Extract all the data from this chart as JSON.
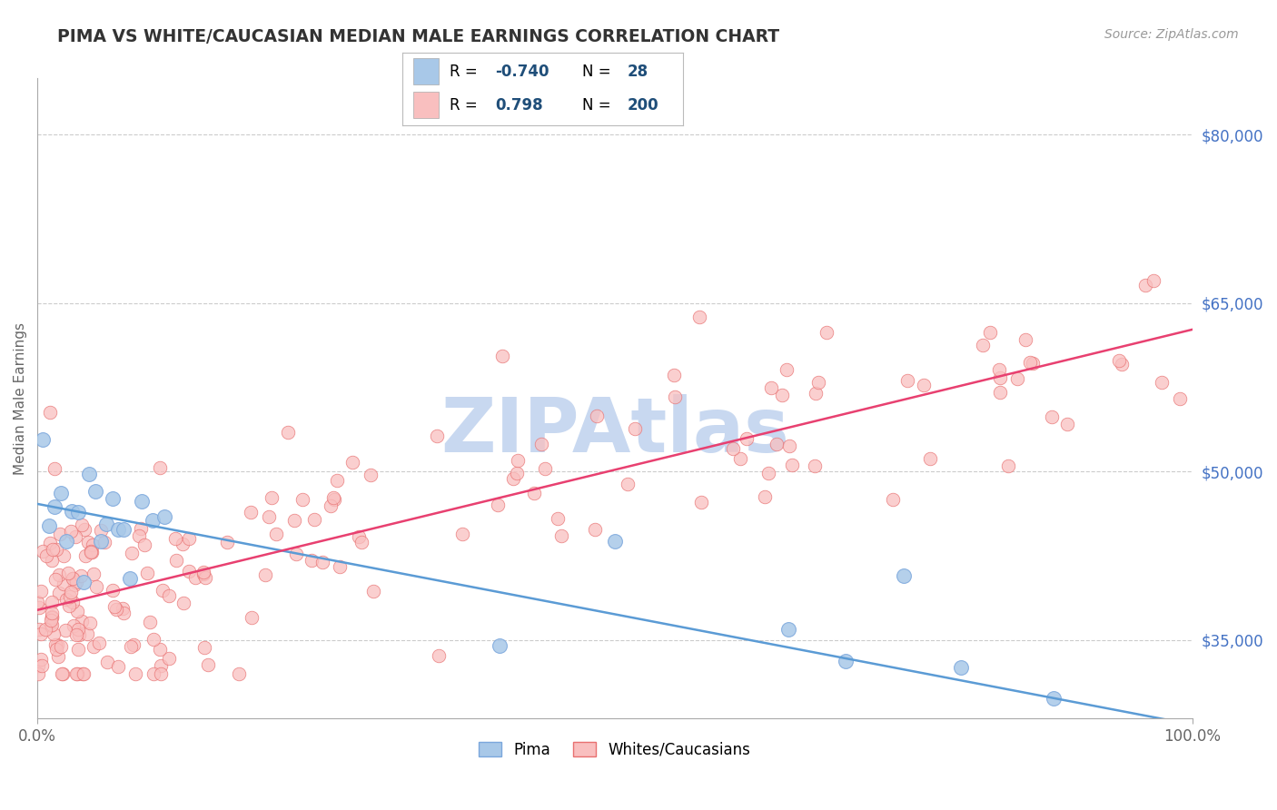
{
  "title": "PIMA VS WHITE/CAUCASIAN MEDIAN MALE EARNINGS CORRELATION CHART",
  "source": "Source: ZipAtlas.com",
  "ylabel": "Median Male Earnings",
  "xlim": [
    0,
    100
  ],
  "ylim": [
    28000,
    85000
  ],
  "yticks": [
    35000,
    50000,
    65000,
    80000
  ],
  "ytick_labels": [
    "$35,000",
    "$50,000",
    "$65,000",
    "$80,000"
  ],
  "xtick_labels": [
    "0.0%",
    "100.0%"
  ],
  "grid_color": "#cccccc",
  "background_color": "#ffffff",
  "title_color": "#333333",
  "axis_label_color": "#666666",
  "ytick_color": "#4472C4",
  "xtick_color": "#666666",
  "pima_color": "#A8C8E8",
  "pima_edge_color": "#7BA7DC",
  "white_color": "#F9BFBF",
  "white_edge_color": "#E87070",
  "pima_line_color": "#5B9BD5",
  "white_line_color": "#E84070",
  "legend_color": "#1F4E79",
  "watermark_text": "ZIPAtlas",
  "watermark_color": "#C8D8F0",
  "legend_r1": "-0.740",
  "legend_n1": "28",
  "legend_r2": "0.798",
  "legend_n2": "200",
  "pima_seed": 7,
  "white_seed": 13,
  "pima_n": 28,
  "white_n": 200
}
